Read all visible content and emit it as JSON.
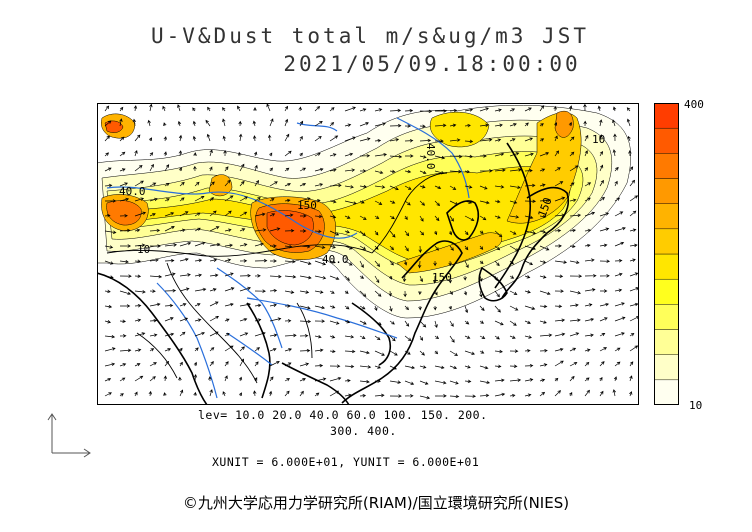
{
  "header": {
    "title_line1": "U-V&Dust total m/s&ug/m3 JST",
    "title_line2": "2021/05/09.18:00:00"
  },
  "colorbar": {
    "max_label": "400",
    "min_label": "10",
    "colors": [
      "#fffff0",
      "#ffffc8",
      "#ffff96",
      "#ffff5a",
      "#ffff1e",
      "#ffe600",
      "#ffcc00",
      "#ffb300",
      "#ff9900",
      "#ff7a00",
      "#ff5a00",
      "#ff3d00"
    ]
  },
  "contour_labels": [
    "40.0",
    "10",
    "40.0",
    "150",
    "150",
    "40.0",
    "150",
    "10"
  ],
  "levels": {
    "line1": "lev= 10.0 20.0 40.0 60.0 100. 150. 200.",
    "line2": "300. 400."
  },
  "units": "XUNIT = 6.000E+01, YUNIT = 6.000E+01",
  "copyright": "©九州大学応用力学研究所(RIAM)/国立環境研究所(NIES)",
  "colors": {
    "coast": "#000000",
    "river": "#2a6fdb"
  }
}
